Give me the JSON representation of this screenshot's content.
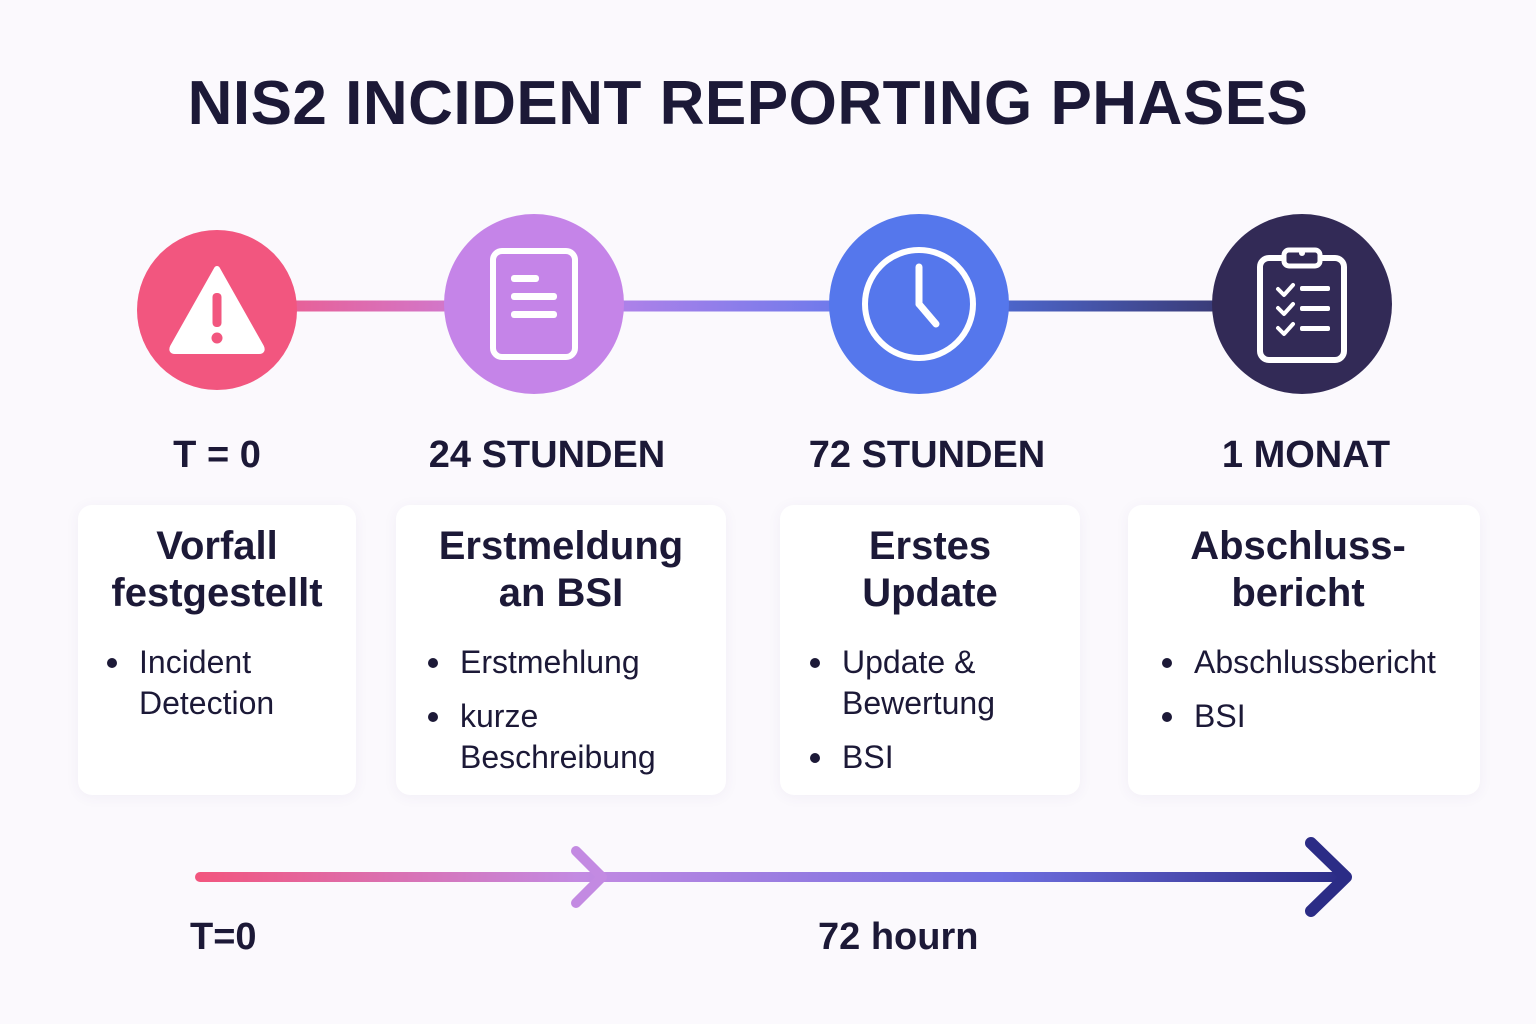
{
  "title": "NIS2 INCIDENT REPORTING PHASES",
  "colors": {
    "phase1": "#f2567f",
    "phase2": "#c584e8",
    "phase3": "#5577ec",
    "phase4": "#322a56",
    "text": "#1c1937"
  },
  "phases": [
    {
      "icon": "warning-triangle-icon",
      "time": "T = 0",
      "title_line1": "Vorfall",
      "title_line2": "festgestellt",
      "bullets": [
        "Incident Detection"
      ]
    },
    {
      "icon": "document-icon",
      "time": "24 STUNDEN",
      "title_line1": "Erstmeldung",
      "title_line2": "an BSI",
      "bullets": [
        "Erstmehlung",
        "kurze Beschreibung"
      ]
    },
    {
      "icon": "clock-icon",
      "time": "72 STUNDEN",
      "title_line1": "Erstes",
      "title_line2": "Update",
      "bullets": [
        "Update & Bewertung",
        "BSI"
      ]
    },
    {
      "icon": "clipboard-checklist-icon",
      "time": "1 MONAT",
      "title_line1": "Abschluss-",
      "title_line2": "bericht",
      "bullets": [
        "Abschlussbericht",
        "BSI"
      ]
    }
  ],
  "timeline_axis": {
    "start_label": "T=0",
    "mid_label": "72 hourn"
  }
}
